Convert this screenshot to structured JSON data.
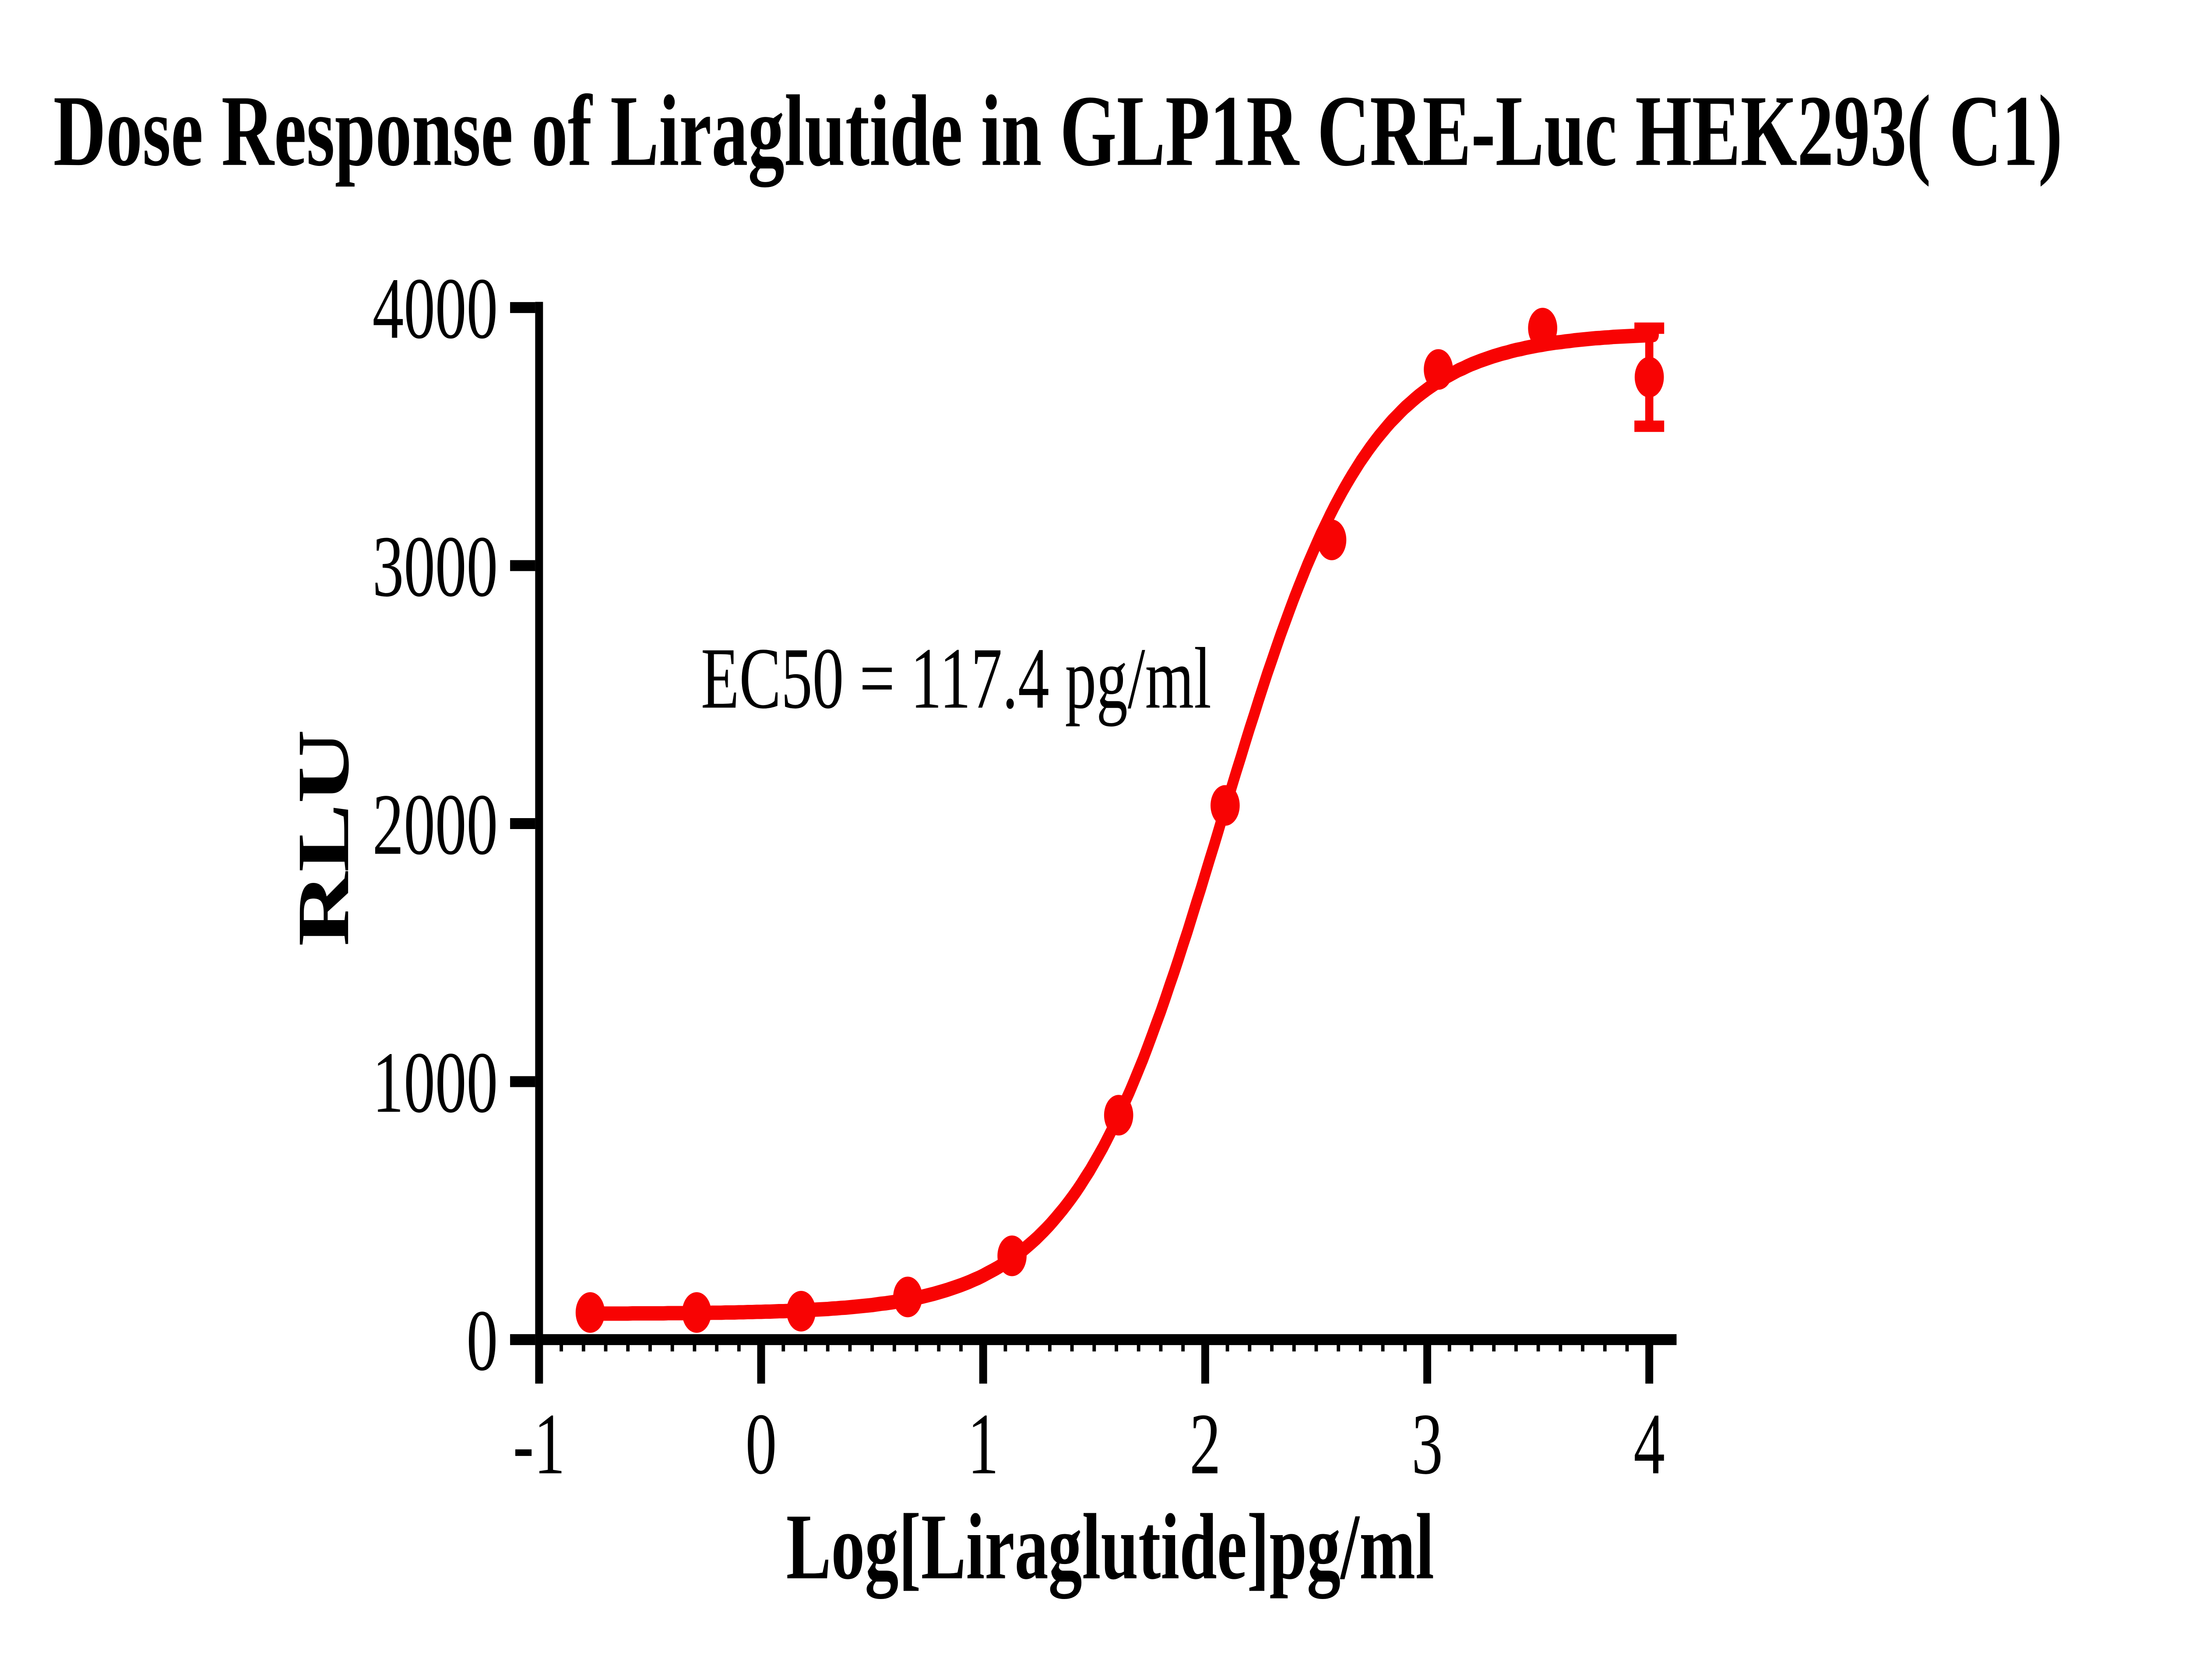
{
  "page": {
    "background": "#ffffff"
  },
  "chart_data": {
    "type": "scatter",
    "title": "Dose Response of Liraglutide in GLP1R CRE-Luc HEK293( C1)",
    "xlabel": "Log[Liraglutide]pg/ml",
    "ylabel": "RLU",
    "ec50_text": "EC50 = 117.4 pg/ml",
    "ec50_value_pg_ml": 117.4,
    "xlim": [
      -1,
      4
    ],
    "ylim": [
      0,
      4000
    ],
    "x_ticks": [
      -1,
      0,
      1,
      2,
      3,
      4
    ],
    "y_ticks": [
      0,
      1000,
      2000,
      3000,
      4000
    ],
    "x_minor_tick_step": 0.1,
    "grid": false,
    "legend": "none",
    "axis_color": "#000000",
    "series": [
      {
        "name": "Liraglutide",
        "color": "#f80303",
        "marker": "circle",
        "x": [
          -0.77,
          -0.29,
          0.18,
          0.66,
          1.13,
          1.61,
          2.09,
          2.57,
          3.05,
          3.52,
          4.0
        ],
        "y": [
          105,
          105,
          110,
          165,
          325,
          870,
          2070,
          3100,
          3760,
          3920,
          3730
        ],
        "error_bars": [
          {
            "x": 4.0,
            "y": 3730,
            "low": 3540,
            "high": 3920
          }
        ]
      }
    ],
    "fit_curve": {
      "model": "4PL",
      "bottom": 100,
      "top": 3905,
      "log_ec50": 2.07,
      "hill": 1.3,
      "x_start": -0.78,
      "x_end": 4.02
    }
  }
}
